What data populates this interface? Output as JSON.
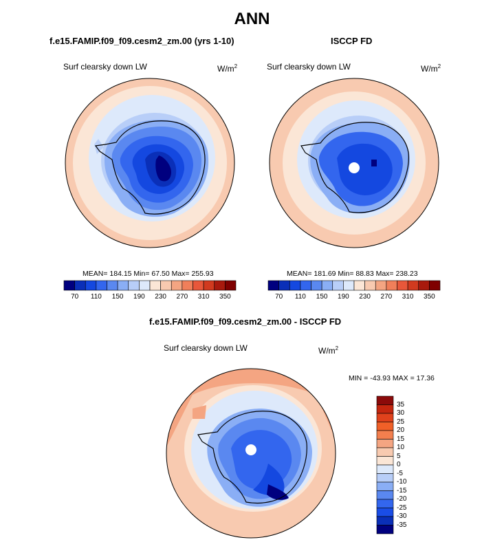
{
  "main_title": "ANN",
  "panels": [
    {
      "title": "f.e15.FAMIP.f09_f09.cesm2_zm.00 (yrs 1-10)",
      "variable": "Surf clearsky down LW",
      "units_base": "W/m",
      "units_exp": "2",
      "stats": "MEAN= 184.15  Min=  67.50  Max= 255.93",
      "has_pole_hole": false
    },
    {
      "title": "ISCCP FD",
      "variable": "Surf clearsky down LW",
      "units_base": "W/m",
      "units_exp": "2",
      "stats": "MEAN= 181.69  Min=  88.83  Max= 238.23",
      "has_pole_hole": true
    }
  ],
  "diff_panel": {
    "title": "f.e15.FAMIP.f09_f09.cesm2_zm.00 - ISCCP FD",
    "variable": "Surf clearsky down LW",
    "units_base": "W/m",
    "units_exp": "2",
    "stats": "MIN = -43.93 MAX =  17.36"
  },
  "colorbar_main": {
    "labels": [
      "70",
      "110",
      "150",
      "190",
      "230",
      "270",
      "310",
      "350"
    ],
    "colors": [
      "#00007f",
      "#0a2fb8",
      "#1448e0",
      "#3366ee",
      "#5a88f0",
      "#8aaef5",
      "#b8cef8",
      "#dde9fb",
      "#fbe6d6",
      "#f8cab0",
      "#f4a582",
      "#f07f5a",
      "#e8573a",
      "#d13a1f",
      "#a8190d",
      "#7f0000"
    ]
  },
  "colorbar_diff": {
    "labels": [
      "35",
      "30",
      "25",
      "20",
      "15",
      "10",
      "5",
      "0",
      "-5",
      "-10",
      "-15",
      "-20",
      "-25",
      "-30",
      "-35"
    ],
    "colors": [
      "#8b0a0a",
      "#c4260f",
      "#e0421c",
      "#f06028",
      "#f37f4e",
      "#f4a582",
      "#f8cab0",
      "#fbe6d6",
      "#dde9fb",
      "#b8cef8",
      "#8aaef5",
      "#5a88f0",
      "#3366ee",
      "#1a4de6",
      "#0a2fb8",
      "#00007f"
    ]
  },
  "chart_data": [
    {
      "type": "heatmap",
      "title": "Surf clearsky down LW",
      "units": "W/m2",
      "mean": 184.15,
      "min": 67.5,
      "max": 255.93,
      "levels": [
        70,
        90,
        110,
        130,
        150,
        170,
        190,
        210,
        230,
        250,
        270,
        290,
        310,
        330,
        350
      ]
    },
    {
      "type": "heatmap",
      "title": "Surf clearsky down LW",
      "units": "W/m2",
      "mean": 181.69,
      "min": 88.83,
      "max": 238.23,
      "levels": [
        70,
        90,
        110,
        130,
        150,
        170,
        190,
        210,
        230,
        250,
        270,
        290,
        310,
        330,
        350
      ]
    },
    {
      "type": "heatmap",
      "title": "Surf clearsky down LW",
      "units": "W/m2",
      "min": -43.93,
      "max": 17.36,
      "levels": [
        -35,
        -30,
        -25,
        -20,
        -15,
        -10,
        -5,
        0,
        5,
        10,
        15,
        20,
        25,
        30,
        35
      ]
    }
  ]
}
